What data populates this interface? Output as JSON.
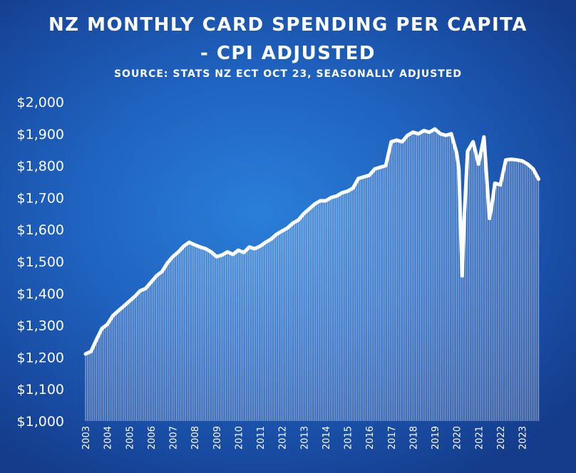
{
  "chart_data": {
    "type": "area",
    "title_line1": "NZ MONTHLY CARD SPENDING PER CAPITA",
    "title_line2": "- CPI ADJUSTED",
    "subtitle": "SOURCE: STATS NZ ECT OCT 23, SEASONALLY ADJUSTED",
    "xlabel": "",
    "ylabel": "",
    "ylim": [
      1000,
      2000
    ],
    "xlim": [
      2003.0,
      2023.8
    ],
    "yticks": [
      {
        "value": 1000,
        "label": "$1,000"
      },
      {
        "value": 1100,
        "label": "$1,100"
      },
      {
        "value": 1200,
        "label": "$1,200"
      },
      {
        "value": 1300,
        "label": "$1,300"
      },
      {
        "value": 1400,
        "label": "$1,400"
      },
      {
        "value": 1500,
        "label": "$1,500"
      },
      {
        "value": 1600,
        "label": "$1,600"
      },
      {
        "value": 1700,
        "label": "$1,700"
      },
      {
        "value": 1800,
        "label": "$1,800"
      },
      {
        "value": 1900,
        "label": "$1,900"
      },
      {
        "value": 2000,
        "label": "$2,000"
      }
    ],
    "xticks": [
      "2003",
      "2004",
      "2005",
      "2006",
      "2007",
      "2008",
      "2009",
      "2010",
      "2011",
      "2012",
      "2013",
      "2014",
      "2015",
      "2016",
      "2017",
      "2018",
      "2019",
      "2020",
      "2021",
      "2022",
      "2023"
    ],
    "grid": false,
    "legend": "none",
    "colors": {
      "line": "#ffffff",
      "bg_center": "#2a7fd8",
      "bg_edge": "#143c8a"
    },
    "series": [
      {
        "x": [
          2003.0,
          2003.25,
          2003.5,
          2003.75,
          2004.0,
          2004.25,
          2004.5,
          2004.75,
          2005.0,
          2005.25,
          2005.5,
          2005.75,
          2006.0,
          2006.25,
          2006.5,
          2006.75,
          2007.0,
          2007.25,
          2007.5,
          2007.75,
          2008.0,
          2008.25,
          2008.5,
          2008.75,
          2009.0,
          2009.25,
          2009.5,
          2009.75,
          2010.0,
          2010.25,
          2010.5,
          2010.75,
          2011.0,
          2011.25,
          2011.5,
          2011.75,
          2012.0,
          2012.25,
          2012.5,
          2012.75,
          2013.0,
          2013.25,
          2013.5,
          2013.75,
          2014.0,
          2014.25,
          2014.5,
          2014.75,
          2015.0,
          2015.25,
          2015.5,
          2015.75,
          2016.0,
          2016.25,
          2016.5,
          2016.75,
          2017.0,
          2017.25,
          2017.5,
          2017.75,
          2018.0,
          2018.25,
          2018.5,
          2018.75,
          2019.0,
          2019.25,
          2019.5,
          2019.75,
          2020.0,
          2020.1,
          2020.25,
          2020.35,
          2020.5,
          2020.75,
          2021.0,
          2021.25,
          2021.5,
          2021.6,
          2021.75,
          2022.0,
          2022.25,
          2022.5,
          2022.75,
          2023.0,
          2023.25,
          2023.5,
          2023.75
        ],
        "values": [
          1210,
          1218,
          1255,
          1290,
          1303,
          1330,
          1345,
          1360,
          1375,
          1390,
          1408,
          1415,
          1435,
          1455,
          1468,
          1495,
          1515,
          1530,
          1548,
          1560,
          1552,
          1545,
          1540,
          1530,
          1515,
          1520,
          1530,
          1522,
          1535,
          1528,
          1545,
          1540,
          1548,
          1560,
          1570,
          1585,
          1595,
          1605,
          1620,
          1630,
          1650,
          1665,
          1680,
          1690,
          1690,
          1700,
          1705,
          1715,
          1720,
          1730,
          1760,
          1765,
          1770,
          1790,
          1795,
          1800,
          1875,
          1880,
          1875,
          1895,
          1905,
          1900,
          1910,
          1905,
          1915,
          1900,
          1895,
          1900,
          1840,
          1790,
          1455,
          1640,
          1845,
          1875,
          1805,
          1890,
          1635,
          1670,
          1745,
          1740,
          1818,
          1820,
          1818,
          1815,
          1805,
          1790,
          1758
        ]
      }
    ]
  }
}
